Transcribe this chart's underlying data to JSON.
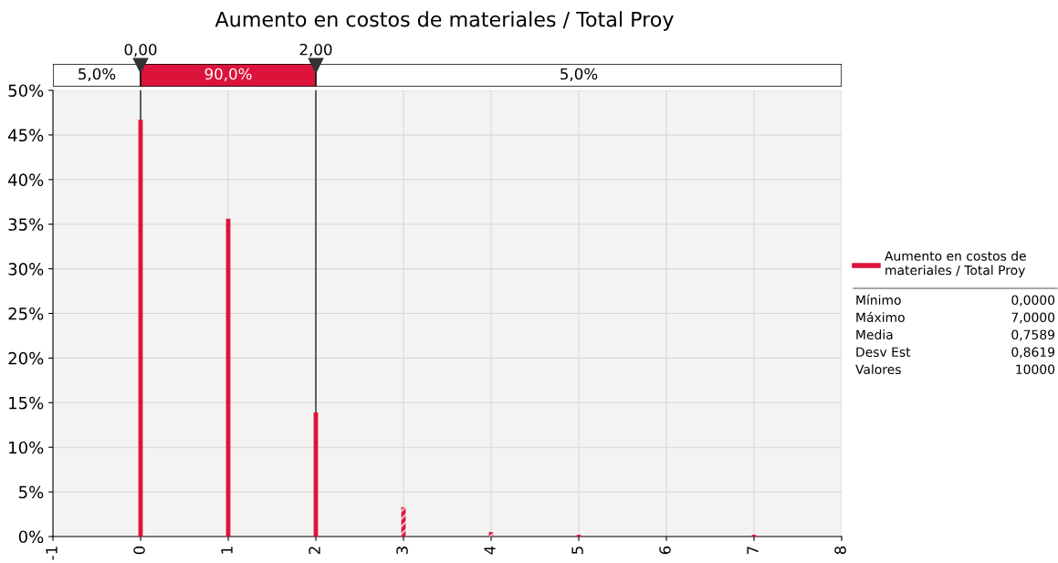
{
  "chart_data": {
    "type": "bar",
    "title": "Aumento en costos de materiales / Total Proy",
    "x": [
      0,
      1,
      2,
      3,
      4,
      5,
      7
    ],
    "series": [
      {
        "name": "Aumento en costos de materiales / Total Proy",
        "color": "#dc143c",
        "values": [
          46.7,
          35.6,
          13.9,
          3.3,
          0.5,
          0.2,
          0.2
        ]
      }
    ],
    "xlim": [
      -1,
      8
    ],
    "xticks": [
      -1,
      0,
      1,
      2,
      3,
      4,
      5,
      6,
      7,
      8
    ],
    "ylim": [
      0,
      50
    ],
    "yticks": [
      {
        "value": 0,
        "label": "0%"
      },
      {
        "value": 5,
        "label": "5%"
      },
      {
        "value": 10,
        "label": "10%"
      },
      {
        "value": 15,
        "label": "15%"
      },
      {
        "value": 20,
        "label": "20%"
      },
      {
        "value": 25,
        "label": "25%"
      },
      {
        "value": 30,
        "label": "30%"
      },
      {
        "value": 35,
        "label": "35%"
      },
      {
        "value": 40,
        "label": "40%"
      },
      {
        "value": 45,
        "label": "45%"
      },
      {
        "value": 50,
        "label": "50%"
      }
    ],
    "ref_lines": [
      {
        "axis": "x",
        "value": 0,
        "label": "0,00"
      },
      {
        "axis": "x",
        "value": 2,
        "label": "2,00"
      }
    ],
    "annotations": [
      "5,0%",
      "90,0%",
      "5,0%",
      "Mínimo",
      "0,0000",
      "Máximo",
      "7,0000",
      "Media",
      "0,7589",
      "Desv Est",
      "0,8619",
      "Valores",
      "10000"
    ],
    "grid": true,
    "legend": "right"
  }
}
